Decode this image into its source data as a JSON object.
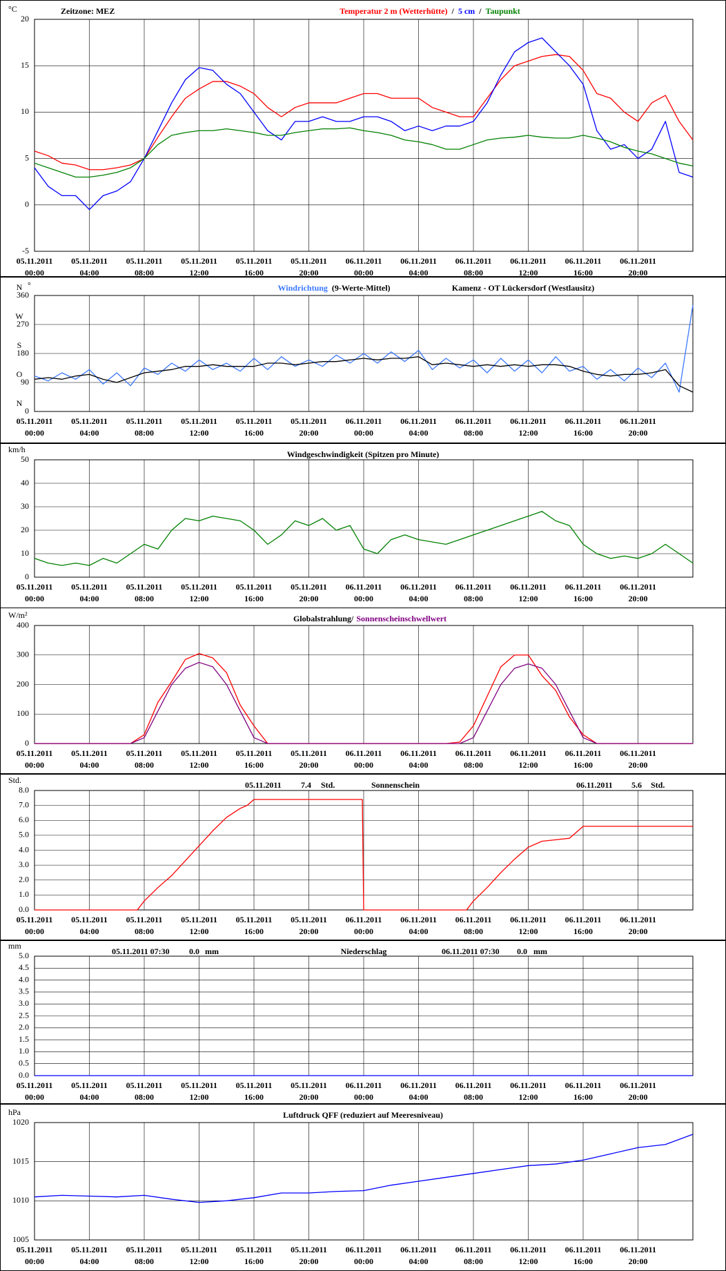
{
  "time_axis": {
    "xlim": [
      0,
      48
    ],
    "xticks": [
      {
        "value": 0,
        "label": "00:00",
        "date": "05.11.2011"
      },
      {
        "value": 4,
        "label": "04:00",
        "date": "05.11.2011"
      },
      {
        "value": 8,
        "label": "08:00",
        "date": "05.11.2011"
      },
      {
        "value": 12,
        "label": "12:00",
        "date": "05.11.2011"
      },
      {
        "value": 16,
        "label": "16:00",
        "date": "05.11.2011"
      },
      {
        "value": 20,
        "label": "20:00",
        "date": "05.11.2011"
      },
      {
        "value": 24,
        "label": "00:00",
        "date": "06.11.2011"
      },
      {
        "value": 28,
        "label": "04:00",
        "date": "06.11.2011"
      },
      {
        "value": 32,
        "label": "08:00",
        "date": "06.11.2011"
      },
      {
        "value": 36,
        "label": "12:00",
        "date": "06.11.2011"
      },
      {
        "value": 40,
        "label": "16:00",
        "date": "06.11.2011"
      },
      {
        "value": 44,
        "label": "20:00",
        "date": "06.11.2011"
      }
    ]
  },
  "chart_data": [
    {
      "type": "line",
      "unit": "°C",
      "timezone": "Zeitzone: MEZ",
      "separator": "/",
      "x": [
        0,
        1,
        2,
        3,
        4,
        5,
        6,
        7,
        8,
        9,
        10,
        11,
        12,
        13,
        14,
        15,
        16,
        17,
        18,
        19,
        20,
        21,
        22,
        23,
        24,
        25,
        26,
        27,
        28,
        29,
        30,
        31,
        32,
        33,
        34,
        35,
        36,
        37,
        38,
        39,
        40,
        41,
        42,
        43,
        44,
        45,
        46,
        47,
        48
      ],
      "ylim": [
        -5,
        20
      ],
      "yticks": [
        -5,
        0,
        5,
        10,
        15,
        20
      ],
      "series": [
        {
          "name": "Temperatur 2 m (Wetterhütte)",
          "color": "#ff0000",
          "values": [
            5.8,
            5.3,
            4.5,
            4.3,
            3.8,
            3.8,
            4.0,
            4.3,
            5.0,
            7.3,
            9.5,
            11.5,
            12.5,
            13.3,
            13.3,
            12.8,
            12.0,
            10.5,
            9.5,
            10.5,
            11.0,
            11.0,
            11.0,
            11.5,
            12.0,
            12.0,
            11.5,
            11.5,
            11.5,
            10.5,
            10.0,
            9.5,
            9.5,
            11.5,
            13.5,
            15.0,
            15.5,
            16.0,
            16.2,
            16.0,
            14.5,
            12.0,
            11.5,
            10.0,
            9.0,
            11.0,
            11.8,
            9.0,
            7.0
          ]
        },
        {
          "name": "5 cm",
          "color": "#0000ff",
          "values": [
            4.0,
            2.0,
            1.0,
            1.0,
            -0.5,
            1.0,
            1.5,
            2.5,
            5.0,
            8.0,
            11.0,
            13.5,
            14.8,
            14.5,
            13.0,
            12.0,
            10.0,
            8.0,
            7.0,
            9.0,
            9.0,
            9.5,
            9.0,
            9.0,
            9.5,
            9.5,
            9.0,
            8.0,
            8.5,
            8.0,
            8.5,
            8.5,
            9.0,
            11.0,
            14.0,
            16.5,
            17.5,
            18.0,
            16.5,
            15.0,
            13.0,
            8.0,
            6.0,
            6.5,
            5.0,
            6.0,
            9.0,
            3.5,
            3.0
          ]
        },
        {
          "name": "Taupunkt",
          "color": "#008000",
          "values": [
            4.5,
            4.0,
            3.5,
            3.0,
            3.0,
            3.2,
            3.5,
            4.0,
            5.0,
            6.5,
            7.5,
            7.8,
            8.0,
            8.0,
            8.2,
            8.0,
            7.8,
            7.5,
            7.5,
            7.8,
            8.0,
            8.2,
            8.2,
            8.3,
            8.0,
            7.8,
            7.5,
            7.0,
            6.8,
            6.5,
            6.0,
            6.0,
            6.5,
            7.0,
            7.2,
            7.3,
            7.5,
            7.3,
            7.2,
            7.2,
            7.5,
            7.2,
            6.8,
            6.2,
            5.8,
            5.5,
            5.0,
            4.5,
            4.2
          ]
        }
      ]
    },
    {
      "type": "line",
      "unit": "°",
      "station": "Kamenz - OT Lückersdorf (Westlausitz)",
      "x": [
        0,
        1,
        2,
        3,
        4,
        5,
        6,
        7,
        8,
        9,
        10,
        11,
        12,
        13,
        14,
        15,
        16,
        17,
        18,
        19,
        20,
        21,
        22,
        23,
        24,
        25,
        26,
        27,
        28,
        29,
        30,
        31,
        32,
        33,
        34,
        35,
        36,
        37,
        38,
        39,
        40,
        41,
        42,
        43,
        44,
        45,
        46,
        47,
        48
      ],
      "ylim": [
        0,
        360
      ],
      "yticks": [
        0,
        90,
        180,
        270,
        360
      ],
      "compass": [
        "N",
        "O",
        "S",
        "W",
        "N"
      ],
      "series": [
        {
          "name": "Windrichtung",
          "color": "#3c78ff",
          "values": [
            110,
            95,
            120,
            100,
            130,
            85,
            120,
            80,
            135,
            115,
            150,
            125,
            160,
            130,
            150,
            125,
            165,
            130,
            170,
            140,
            160,
            140,
            175,
            150,
            180,
            150,
            185,
            155,
            190,
            130,
            165,
            135,
            160,
            120,
            165,
            125,
            160,
            120,
            170,
            125,
            140,
            100,
            130,
            95,
            135,
            105,
            150,
            60,
            330
          ]
        },
        {
          "name": "(9-Werte-Mittel)",
          "color": "#000000",
          "values": [
            100,
            105,
            100,
            110,
            115,
            100,
            90,
            105,
            120,
            125,
            130,
            140,
            140,
            145,
            140,
            140,
            140,
            150,
            150,
            145,
            150,
            155,
            155,
            160,
            165,
            160,
            165,
            165,
            170,
            145,
            150,
            145,
            140,
            145,
            140,
            145,
            140,
            145,
            145,
            140,
            125,
            115,
            110,
            115,
            115,
            120,
            130,
            80,
            60
          ]
        }
      ]
    },
    {
      "type": "line",
      "unit": "km/h",
      "title": "Windgeschwindigkeit (Spitzen pro Minute)",
      "x": [
        0,
        1,
        2,
        3,
        4,
        5,
        6,
        7,
        8,
        9,
        10,
        11,
        12,
        13,
        14,
        15,
        16,
        17,
        18,
        19,
        20,
        21,
        22,
        23,
        24,
        25,
        26,
        27,
        28,
        29,
        30,
        31,
        32,
        33,
        34,
        35,
        36,
        37,
        38,
        39,
        40,
        41,
        42,
        43,
        44,
        45,
        46,
        47,
        48
      ],
      "ylim": [
        0,
        50
      ],
      "yticks": [
        0,
        10,
        20,
        30,
        40,
        50
      ],
      "series": [
        {
          "color": "#008000",
          "values": [
            8,
            6,
            5,
            6,
            5,
            8,
            6,
            10,
            14,
            12,
            20,
            25,
            24,
            26,
            25,
            24,
            20,
            14,
            18,
            24,
            22,
            25,
            20,
            22,
            12,
            10,
            16,
            18,
            16,
            15,
            14,
            16,
            18,
            20,
            22,
            24,
            26,
            28,
            24,
            22,
            14,
            10,
            8,
            9,
            8,
            10,
            14,
            10,
            6
          ]
        }
      ]
    },
    {
      "type": "line",
      "unit": "W/m²",
      "separator": "/",
      "x": [
        0,
        1,
        2,
        3,
        4,
        5,
        6,
        7,
        8,
        9,
        10,
        11,
        12,
        13,
        14,
        15,
        16,
        17,
        18,
        19,
        20,
        21,
        22,
        23,
        24,
        25,
        26,
        27,
        28,
        29,
        30,
        31,
        32,
        33,
        34,
        35,
        36,
        37,
        38,
        39,
        40,
        41,
        42,
        43,
        44,
        45,
        46,
        47,
        48
      ],
      "ylim": [
        0,
        400
      ],
      "yticks": [
        0,
        100,
        200,
        300,
        400
      ],
      "series": [
        {
          "name": "Globalstrahlung",
          "color": "#ff0000",
          "name_color": "#000000",
          "values": [
            0,
            0,
            0,
            0,
            0,
            0,
            0,
            0,
            30,
            140,
            210,
            285,
            305,
            290,
            240,
            130,
            60,
            0,
            0,
            0,
            0,
            0,
            0,
            0,
            0,
            0,
            0,
            0,
            0,
            0,
            0,
            5,
            60,
            160,
            260,
            300,
            300,
            230,
            180,
            90,
            30,
            0,
            0,
            0,
            0,
            0,
            0,
            0,
            0
          ]
        },
        {
          "name": "Sonnenscheinschwellwert",
          "color": "#800080",
          "values": [
            0,
            0,
            0,
            0,
            0,
            0,
            0,
            0,
            20,
            110,
            200,
            255,
            275,
            260,
            200,
            110,
            20,
            0,
            0,
            0,
            0,
            0,
            0,
            0,
            0,
            0,
            0,
            0,
            0,
            0,
            0,
            0,
            20,
            110,
            200,
            255,
            270,
            255,
            200,
            110,
            20,
            0,
            0,
            0,
            0,
            0,
            0,
            0,
            0
          ]
        }
      ]
    },
    {
      "type": "line",
      "unit": "Std.",
      "title": "Sonnenschein",
      "notes": [
        [
          "05.11.2011",
          "7.4",
          "Std."
        ],
        [
          "06.11.2011",
          "5.6",
          "Std."
        ]
      ],
      "x": [
        0,
        7.5,
        8,
        9,
        10,
        11,
        12,
        13,
        14,
        15,
        15.5,
        16,
        23.9,
        24,
        31.5,
        32,
        33,
        34,
        35,
        36,
        37,
        38,
        39,
        40,
        48
      ],
      "ylim": [
        0,
        8
      ],
      "yticks": [
        {
          "value": 0,
          "label": "0.0"
        },
        {
          "value": 1,
          "label": "1.0"
        },
        {
          "value": 2,
          "label": "2.0"
        },
        {
          "value": 3,
          "label": "3.0"
        },
        {
          "value": 4,
          "label": "4.0"
        },
        {
          "value": 5,
          "label": "5.0"
        },
        {
          "value": 6,
          "label": "6.0"
        },
        {
          "value": 7,
          "label": "7.0"
        },
        {
          "value": 8,
          "label": "8.0"
        }
      ],
      "series": [
        {
          "color": "#ff0000",
          "values": [
            0,
            0,
            0.6,
            1.5,
            2.3,
            3.3,
            4.3,
            5.3,
            6.2,
            6.8,
            7.0,
            7.4,
            7.4,
            0,
            0,
            0.6,
            1.5,
            2.5,
            3.4,
            4.2,
            4.6,
            4.7,
            4.8,
            5.6,
            5.6
          ]
        }
      ]
    },
    {
      "type": "line",
      "unit": "mm",
      "title": "Niederschlag",
      "notes": [
        [
          "05.11.2011 07:30",
          "0.0",
          "mm"
        ],
        [
          "06.11.2011 07:30",
          "0.0",
          "mm"
        ]
      ],
      "x": [
        0,
        48
      ],
      "ylim": [
        0,
        5
      ],
      "yticks": [
        {
          "value": 0,
          "label": "0.0"
        },
        {
          "value": 0.5,
          "label": "0.5"
        },
        {
          "value": 1,
          "label": "1.0"
        },
        {
          "value": 1.5,
          "label": "1.5"
        },
        {
          "value": 2,
          "label": "2.0"
        },
        {
          "value": 2.5,
          "label": "2.5"
        },
        {
          "value": 3,
          "label": "3.0"
        },
        {
          "value": 3.5,
          "label": "3.5"
        },
        {
          "value": 4,
          "label": "4.0"
        },
        {
          "value": 4.5,
          "label": "4.5"
        },
        {
          "value": 5,
          "label": "5.0"
        }
      ],
      "series": [
        {
          "color": "#0000ff",
          "values": [
            0,
            0
          ]
        }
      ]
    },
    {
      "type": "line",
      "unit": "hPa",
      "title": "Luftdruck QFF (reduziert auf Meeresniveau)",
      "x": [
        0,
        2,
        4,
        6,
        8,
        10,
        12,
        14,
        16,
        18,
        20,
        22,
        24,
        26,
        28,
        30,
        32,
        34,
        36,
        38,
        40,
        42,
        44,
        46,
        48
      ],
      "ylim": [
        1005,
        1020
      ],
      "yticks": [
        1005,
        1010,
        1015,
        1020
      ],
      "series": [
        {
          "color": "#0000ff",
          "values": [
            1010.5,
            1010.7,
            1010.6,
            1010.5,
            1010.7,
            1010.2,
            1009.8,
            1010.0,
            1010.4,
            1011.0,
            1011.0,
            1011.2,
            1011.3,
            1012.0,
            1012.5,
            1013.0,
            1013.5,
            1014.0,
            1014.5,
            1014.7,
            1015.2,
            1016.0,
            1016.8,
            1017.2,
            1018.5
          ]
        }
      ]
    }
  ]
}
